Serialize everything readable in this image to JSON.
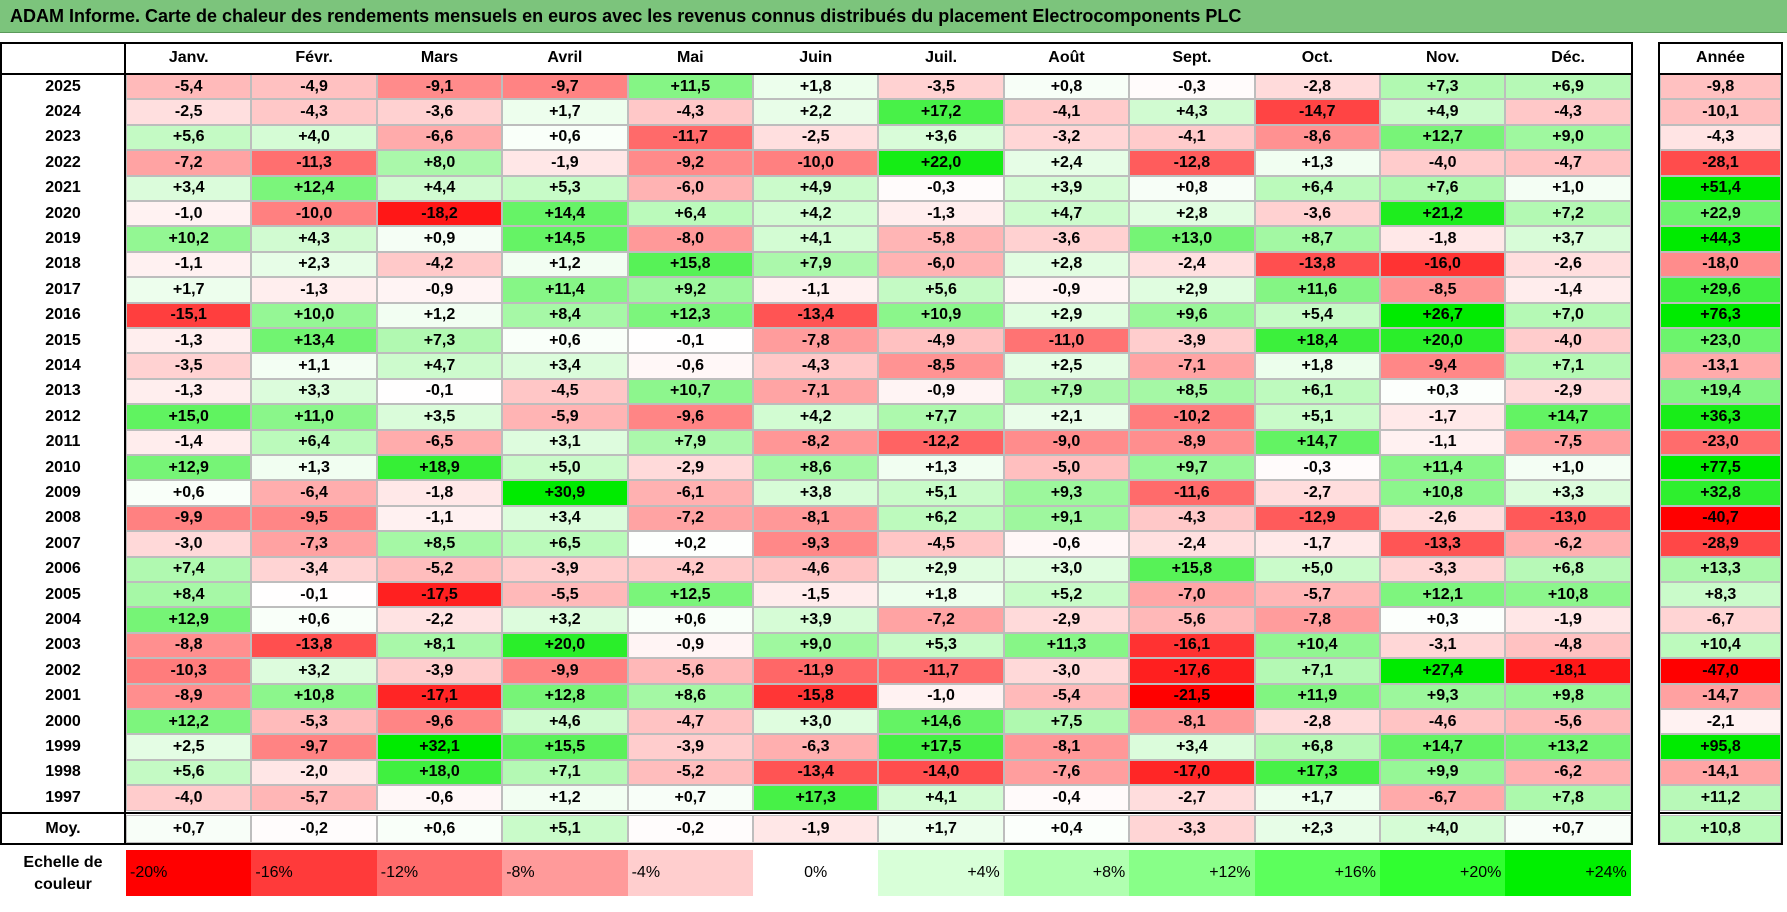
{
  "title": "ADAM Informe. Carte de chaleur des rendements mensuels en euros avec les revenus connus distribués du placement Electrocomponents PLC",
  "chart_data": {
    "type": "heatmap",
    "title": "ADAM Informe. Carte de chaleur des rendements mensuels en euros avec les revenus connus distribués du placement Electrocomponents PLC",
    "columns": [
      "Janv.",
      "Févr.",
      "Mars",
      "Avril",
      "Mai",
      "Juin",
      "Juil.",
      "Août",
      "Sept.",
      "Oct.",
      "Nov.",
      "Déc."
    ],
    "year_column_label": "Année",
    "rows": [
      {
        "year": "2025",
        "values": [
          "-5,4",
          "-4,9",
          "-9,1",
          "-9,7",
          "+11,5",
          "+1,8",
          "-3,5",
          "+0,8",
          "-0,3",
          "-2,8",
          "+7,3",
          "+6,9"
        ],
        "annual": "-9,8"
      },
      {
        "year": "2024",
        "values": [
          "-2,5",
          "-4,3",
          "-3,6",
          "+1,7",
          "-4,3",
          "+2,2",
          "+17,2",
          "-4,1",
          "+4,3",
          "-14,7",
          "+4,9",
          "-4,3"
        ],
        "annual": "-10,1"
      },
      {
        "year": "2023",
        "values": [
          "+5,6",
          "+4,0",
          "-6,6",
          "+0,6",
          "-11,7",
          "-2,5",
          "+3,6",
          "-3,2",
          "-4,1",
          "-8,6",
          "+12,7",
          "+9,0"
        ],
        "annual": "-4,3"
      },
      {
        "year": "2022",
        "values": [
          "-7,2",
          "-11,3",
          "+8,0",
          "-1,9",
          "-9,2",
          "-10,0",
          "+22,0",
          "+2,4",
          "-12,8",
          "+1,3",
          "-4,0",
          "-4,7"
        ],
        "annual": "-28,1"
      },
      {
        "year": "2021",
        "values": [
          "+3,4",
          "+12,4",
          "+4,4",
          "+5,3",
          "-6,0",
          "+4,9",
          "-0,3",
          "+3,9",
          "+0,8",
          "+6,4",
          "+7,6",
          "+1,0"
        ],
        "annual": "+51,4"
      },
      {
        "year": "2020",
        "values": [
          "-1,0",
          "-10,0",
          "-18,2",
          "+14,4",
          "+6,4",
          "+4,2",
          "-1,3",
          "+4,7",
          "+2,8",
          "-3,6",
          "+21,2",
          "+7,2"
        ],
        "annual": "+22,9"
      },
      {
        "year": "2019",
        "values": [
          "+10,2",
          "+4,3",
          "+0,9",
          "+14,5",
          "-8,0",
          "+4,1",
          "-5,8",
          "-3,6",
          "+13,0",
          "+8,7",
          "-1,8",
          "+3,7"
        ],
        "annual": "+44,3"
      },
      {
        "year": "2018",
        "values": [
          "-1,1",
          "+2,3",
          "-4,2",
          "+1,2",
          "+15,8",
          "+7,9",
          "-6,0",
          "+2,8",
          "-2,4",
          "-13,8",
          "-16,0",
          "-2,6"
        ],
        "annual": "-18,0"
      },
      {
        "year": "2017",
        "values": [
          "+1,7",
          "-1,3",
          "-0,9",
          "+11,4",
          "+9,2",
          "-1,1",
          "+5,6",
          "-0,9",
          "+2,9",
          "+11,6",
          "-8,5",
          "-1,4"
        ],
        "annual": "+29,6"
      },
      {
        "year": "2016",
        "values": [
          "-15,1",
          "+10,0",
          "+1,2",
          "+8,4",
          "+12,3",
          "-13,4",
          "+10,9",
          "+2,9",
          "+9,6",
          "+5,4",
          "+26,7",
          "+7,0"
        ],
        "annual": "+76,3"
      },
      {
        "year": "2015",
        "values": [
          "-1,3",
          "+13,4",
          "+7,3",
          "+0,6",
          "-0,1",
          "-7,8",
          "-4,9",
          "-11,0",
          "-3,9",
          "+18,4",
          "+20,0",
          "-4,0"
        ],
        "annual": "+23,0"
      },
      {
        "year": "2014",
        "values": [
          "-3,5",
          "+1,1",
          "+4,7",
          "+3,4",
          "-0,6",
          "-4,3",
          "-8,5",
          "+2,5",
          "-7,1",
          "+1,8",
          "-9,4",
          "+7,1"
        ],
        "annual": "-13,1"
      },
      {
        "year": "2013",
        "values": [
          "-1,3",
          "+3,3",
          "-0,1",
          "-4,5",
          "+10,7",
          "-7,1",
          "-0,9",
          "+7,9",
          "+8,5",
          "+6,1",
          "+0,3",
          "-2,9"
        ],
        "annual": "+19,4"
      },
      {
        "year": "2012",
        "values": [
          "+15,0",
          "+11,0",
          "+3,5",
          "-5,9",
          "-9,6",
          "+4,2",
          "+7,7",
          "+2,1",
          "-10,2",
          "+5,1",
          "-1,7",
          "+14,7"
        ],
        "annual": "+36,3"
      },
      {
        "year": "2011",
        "values": [
          "-1,4",
          "+6,4",
          "-6,5",
          "+3,1",
          "+7,9",
          "-8,2",
          "-12,2",
          "-9,0",
          "-8,9",
          "+14,7",
          "-1,1",
          "-7,5"
        ],
        "annual": "-23,0"
      },
      {
        "year": "2010",
        "values": [
          "+12,9",
          "+1,3",
          "+18,9",
          "+5,0",
          "-2,9",
          "+8,6",
          "+1,3",
          "-5,0",
          "+9,7",
          "-0,3",
          "+11,4",
          "+1,0"
        ],
        "annual": "+77,5"
      },
      {
        "year": "2009",
        "values": [
          "+0,6",
          "-6,4",
          "-1,8",
          "+30,9",
          "-6,1",
          "+3,8",
          "+5,1",
          "+9,3",
          "-11,6",
          "-2,7",
          "+10,8",
          "+3,3"
        ],
        "annual": "+32,8"
      },
      {
        "year": "2008",
        "values": [
          "-9,9",
          "-9,5",
          "-1,1",
          "+3,4",
          "-7,2",
          "-8,1",
          "+6,2",
          "+9,1",
          "-4,3",
          "-12,9",
          "-2,6",
          "-13,0"
        ],
        "annual": "-40,7"
      },
      {
        "year": "2007",
        "values": [
          "-3,0",
          "-7,3",
          "+8,5",
          "+6,5",
          "+0,2",
          "-9,3",
          "-4,5",
          "-0,6",
          "-2,4",
          "-1,7",
          "-13,3",
          "-6,2"
        ],
        "annual": "-28,9"
      },
      {
        "year": "2006",
        "values": [
          "+7,4",
          "-3,4",
          "-5,2",
          "-3,9",
          "-4,2",
          "-4,6",
          "+2,9",
          "+3,0",
          "+15,8",
          "+5,0",
          "-3,3",
          "+6,8"
        ],
        "annual": "+13,3"
      },
      {
        "year": "2005",
        "values": [
          "+8,4",
          "-0,1",
          "-17,5",
          "-5,5",
          "+12,5",
          "-1,5",
          "+1,8",
          "+5,2",
          "-7,0",
          "-5,7",
          "+12,1",
          "+10,8"
        ],
        "annual": "+8,3"
      },
      {
        "year": "2004",
        "values": [
          "+12,9",
          "+0,6",
          "-2,2",
          "+3,2",
          "+0,6",
          "+3,9",
          "-7,2",
          "-2,9",
          "-5,6",
          "-7,8",
          "+0,3",
          "-1,9"
        ],
        "annual": "-6,7"
      },
      {
        "year": "2003",
        "values": [
          "-8,8",
          "-13,8",
          "+8,1",
          "+20,0",
          "-0,9",
          "+9,0",
          "+5,3",
          "+11,3",
          "-16,1",
          "+10,4",
          "-3,1",
          "-4,8"
        ],
        "annual": "+10,4"
      },
      {
        "year": "2002",
        "values": [
          "-10,3",
          "+3,2",
          "-3,9",
          "-9,9",
          "-5,6",
          "-11,9",
          "-11,7",
          "-3,0",
          "-17,6",
          "+7,1",
          "+27,4",
          "-18,1"
        ],
        "annual": "-47,0"
      },
      {
        "year": "2001",
        "values": [
          "-8,9",
          "+10,8",
          "-17,1",
          "+12,8",
          "+8,6",
          "-15,8",
          "-1,0",
          "-5,4",
          "-21,5",
          "+11,9",
          "+9,3",
          "+9,8"
        ],
        "annual": "-14,7"
      },
      {
        "year": "2000",
        "values": [
          "+12,2",
          "-5,3",
          "-9,6",
          "+4,6",
          "-4,7",
          "+3,0",
          "+14,6",
          "+7,5",
          "-8,1",
          "-2,8",
          "-4,6",
          "-5,6"
        ],
        "annual": "-2,1"
      },
      {
        "year": "1999",
        "values": [
          "+2,5",
          "-9,7",
          "+32,1",
          "+15,5",
          "-3,9",
          "-6,3",
          "+17,5",
          "-8,1",
          "+3,4",
          "+6,8",
          "+14,7",
          "+13,2"
        ],
        "annual": "+95,8"
      },
      {
        "year": "1998",
        "values": [
          "+5,6",
          "-2,0",
          "+18,0",
          "+7,1",
          "-5,2",
          "-13,4",
          "-14,0",
          "-7,6",
          "-17,0",
          "+17,3",
          "+9,9",
          "-6,2"
        ],
        "annual": "-14,1"
      },
      {
        "year": "1997",
        "values": [
          "-4,0",
          "-5,7",
          "-0,6",
          "+1,2",
          "+0,7",
          "+17,3",
          "+4,1",
          "-0,4",
          "-2,7",
          "+1,7",
          "-6,7",
          "+7,8"
        ],
        "annual": "+11,2"
      }
    ],
    "average": {
      "label": "Moy.",
      "values": [
        "+0,7",
        "-0,2",
        "+0,6",
        "+5,1",
        "-0,2",
        "-1,9",
        "+1,7",
        "+0,4",
        "-3,3",
        "+2,3",
        "+4,0",
        "+0,7"
      ],
      "annual": "+10,8"
    },
    "color_scale": {
      "label_line1": "Echelle de",
      "label_line2": "couleur",
      "steps": [
        {
          "label": "-20%",
          "color": "#ff0000",
          "align": "left"
        },
        {
          "label": "-16%",
          "color": "#ff3a3a",
          "align": "left"
        },
        {
          "label": "-12%",
          "color": "#ff6b6b",
          "align": "left"
        },
        {
          "label": "-8%",
          "color": "#ff9a9a",
          "align": "left"
        },
        {
          "label": "-4%",
          "color": "#ffcece",
          "align": "left"
        },
        {
          "label": "0%",
          "color": "#ffffff",
          "align": "center"
        },
        {
          "label": "+4%",
          "color": "#d8ffd8",
          "align": "right"
        },
        {
          "label": "+8%",
          "color": "#b0ffb0",
          "align": "right"
        },
        {
          "label": "+12%",
          "color": "#88ff88",
          "align": "right"
        },
        {
          "label": "+16%",
          "color": "#5cff5c",
          "align": "right"
        },
        {
          "label": "+20%",
          "color": "#30ff30",
          "align": "right"
        },
        {
          "label": "+24%",
          "color": "#00f000",
          "align": "right"
        }
      ]
    }
  }
}
